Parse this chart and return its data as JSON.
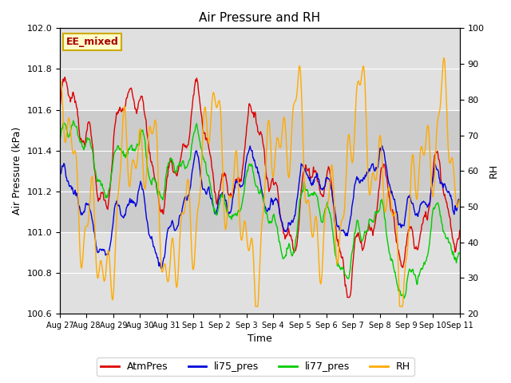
{
  "title": "Air Pressure and RH",
  "xlabel": "Time",
  "ylabel_left": "Air Pressure (kPa)",
  "ylabel_right": "RH",
  "annotation": "EE_mixed",
  "ylim_left": [
    100.6,
    102.0
  ],
  "ylim_right": [
    20,
    100
  ],
  "yticks_left": [
    100.6,
    100.8,
    101.0,
    101.2,
    101.4,
    101.6,
    101.8,
    102.0
  ],
  "yticks_right": [
    20,
    30,
    40,
    50,
    60,
    70,
    80,
    90,
    100
  ],
  "xtick_labels": [
    "Aug 27",
    "Aug 28",
    "Aug 29",
    "Aug 30",
    "Aug 31",
    "Sep 1",
    "Sep 2",
    "Sep 3",
    "Sep 4",
    "Sep 5",
    "Sep 6",
    "Sep 7",
    "Sep 8",
    "Sep 9",
    "Sep 10",
    "Sep 11"
  ],
  "colors": {
    "AtmPres": "#dd0000",
    "li75_pres": "#0000dd",
    "li77_pres": "#00cc00",
    "RH": "#ffaa00"
  },
  "legend_labels": [
    "AtmPres",
    "li75_pres",
    "li77_pres",
    "RH"
  ],
  "background_color": "#ffffff",
  "plot_bg_color": "#e0e0e0",
  "band_color": "#cccccc",
  "band_ylim": [
    101.0,
    101.6
  ],
  "num_days": 15,
  "n_points": 720,
  "atm_base": 101.25,
  "li_base": 101.15,
  "rh_base": 55.0
}
